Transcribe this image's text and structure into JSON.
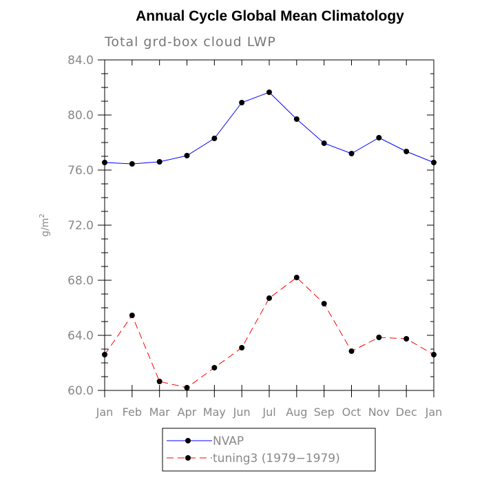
{
  "chart_data": {
    "type": "line",
    "title": "Annual Cycle Global Mean Climatology",
    "subtitle": "Total grd-box cloud LWP",
    "xlabel": "",
    "ylabel": "g/m",
    "ylabel_superscript": "2",
    "categories": [
      "Jan",
      "Feb",
      "Mar",
      "Apr",
      "May",
      "Jun",
      "Jul",
      "Aug",
      "Sep",
      "Oct",
      "Nov",
      "Dec",
      "Jan"
    ],
    "ylim": [
      60.0,
      84.0
    ],
    "yticks": [
      "60.0",
      "64.0",
      "68.0",
      "72.0",
      "76.0",
      "80.0",
      "84.0"
    ],
    "grid": false,
    "legend_position": "bottom",
    "series": [
      {
        "name": "NVAP",
        "color": "#0000ff",
        "dashed": false,
        "values": [
          76.55,
          76.45,
          76.6,
          77.05,
          78.3,
          80.9,
          81.65,
          79.7,
          77.95,
          77.2,
          78.35,
          77.35,
          76.55
        ]
      },
      {
        "name": "tuning3 (1979−1979)",
        "color": "#ff0000",
        "dashed": true,
        "values": [
          62.6,
          65.45,
          60.65,
          60.2,
          61.65,
          63.1,
          66.7,
          68.2,
          66.3,
          62.85,
          63.85,
          63.75,
          62.6
        ]
      }
    ]
  }
}
